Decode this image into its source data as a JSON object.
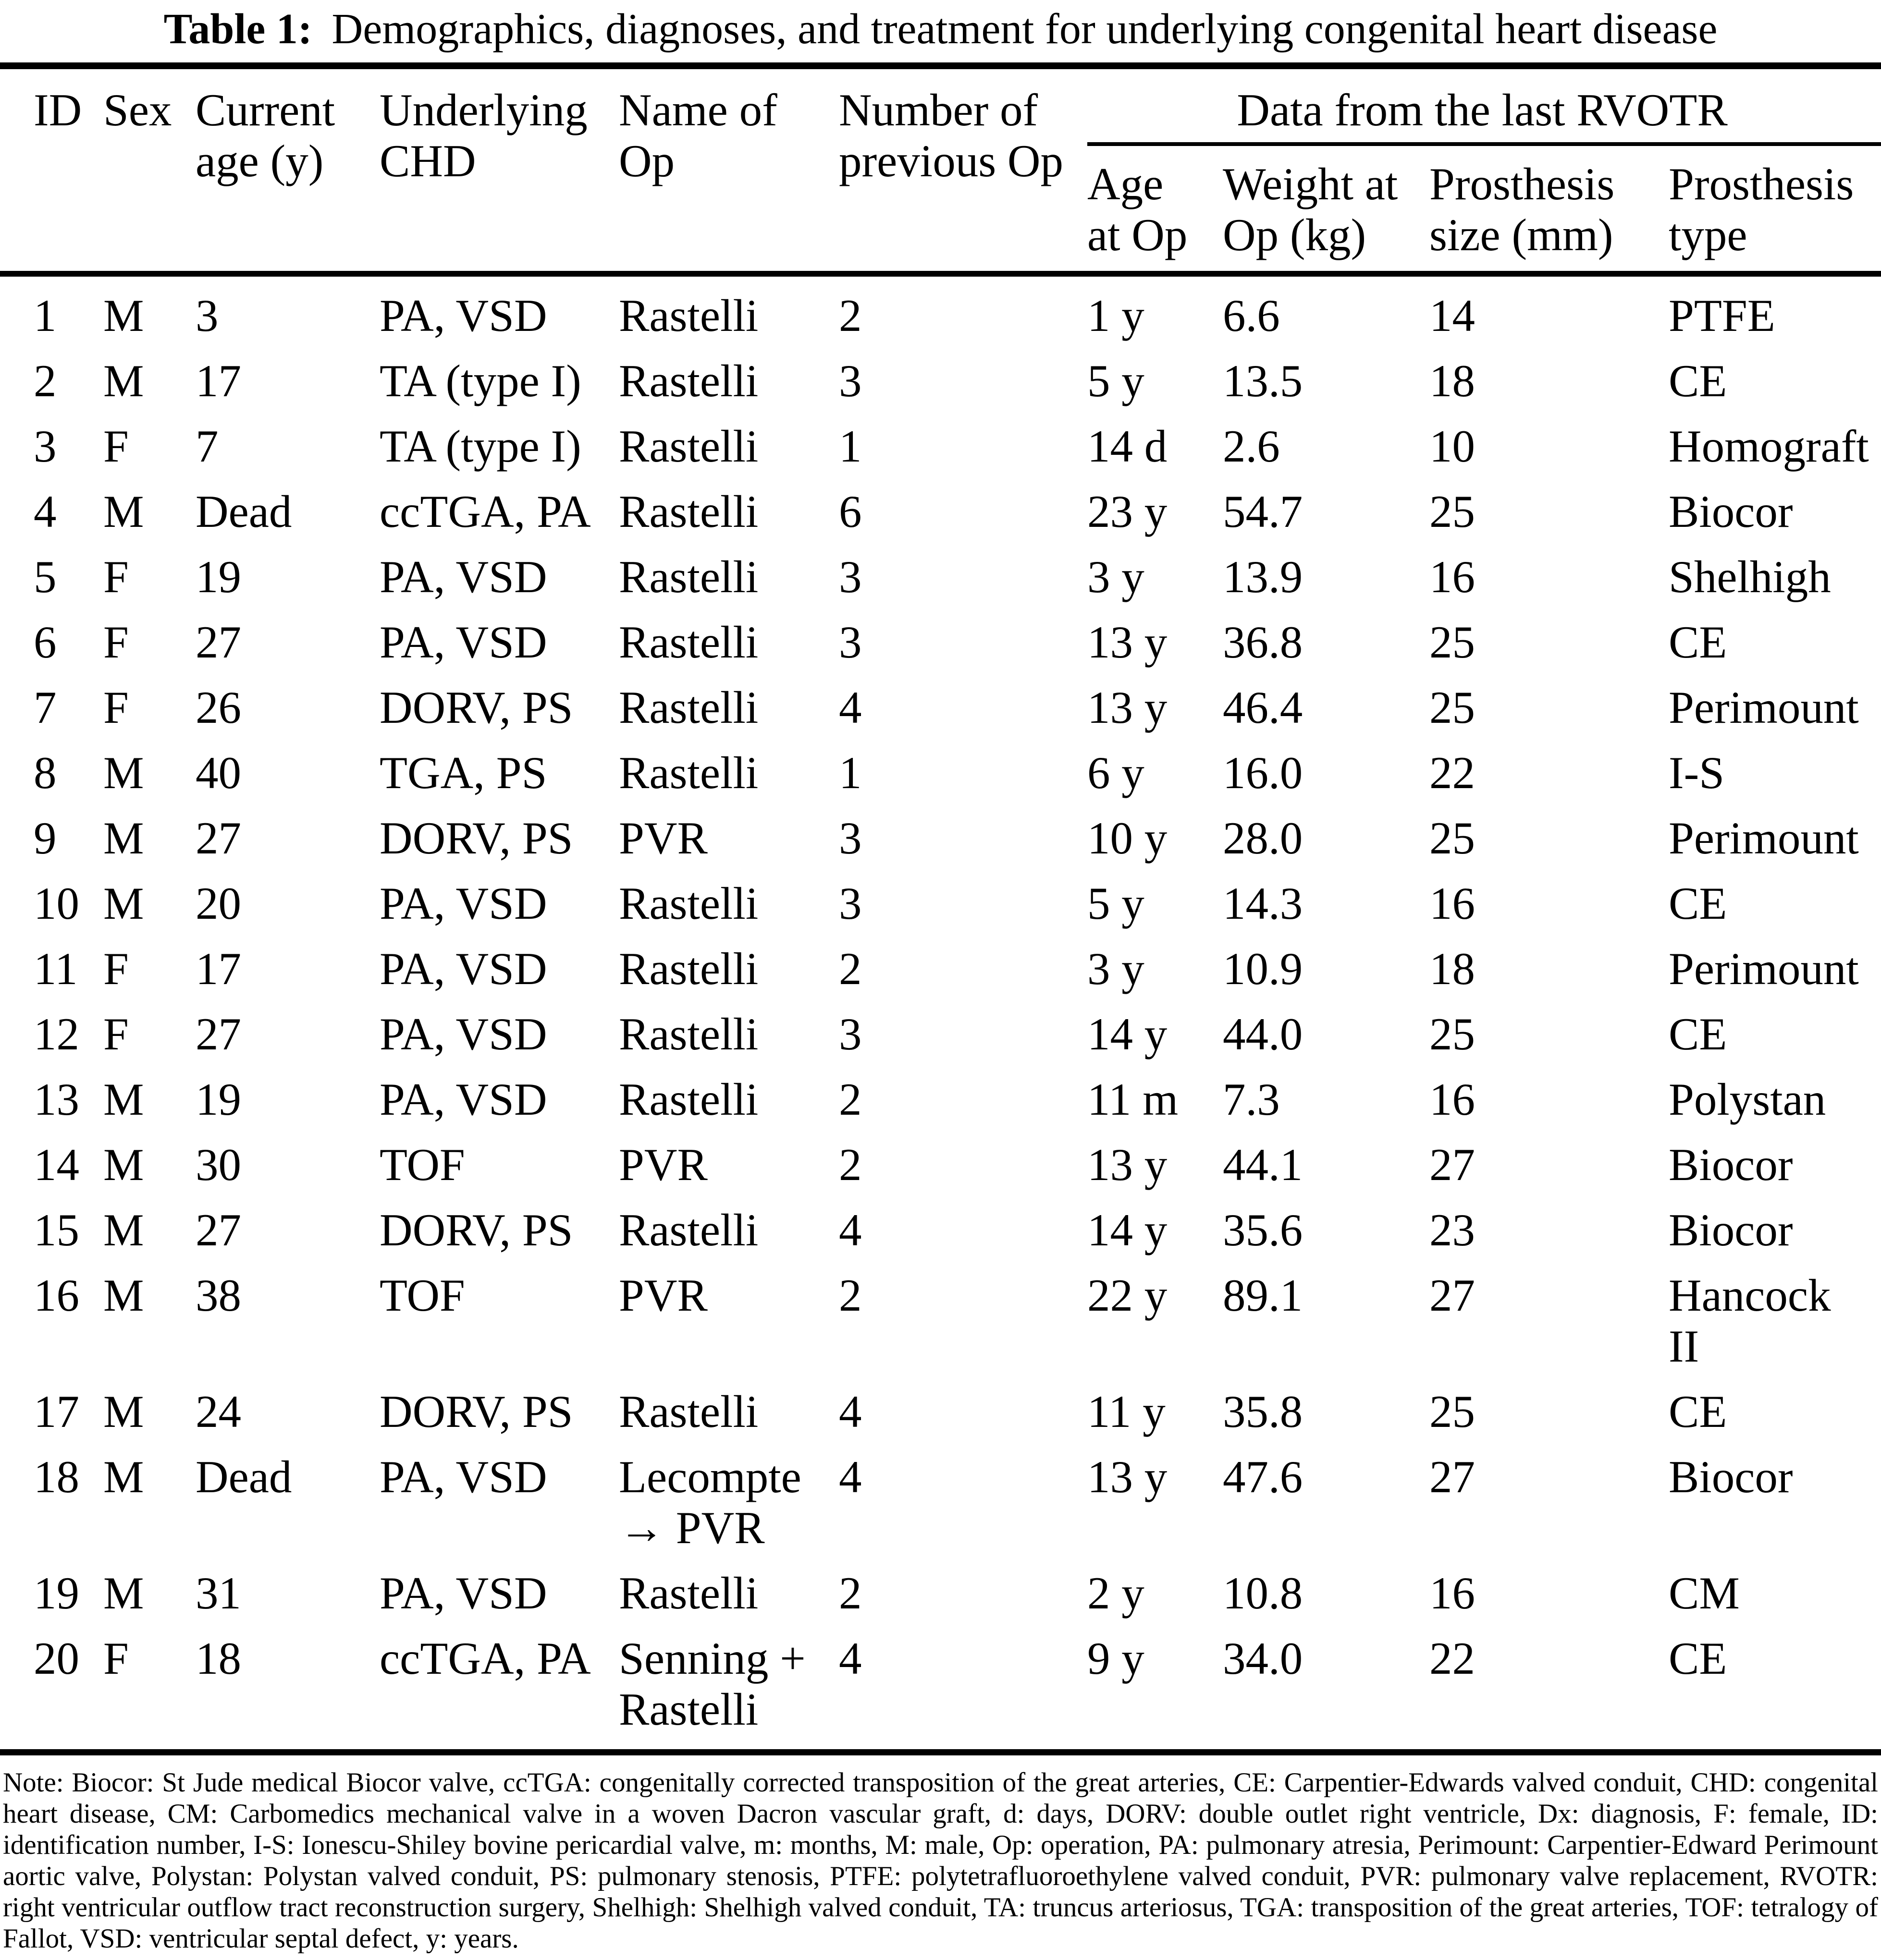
{
  "colors": {
    "text": "#000000",
    "background": "#ffffff",
    "rule": "#000000"
  },
  "title": {
    "label": "Table 1:",
    "rest": "Demographics, diagnoses, and treatment for underlying congenital heart disease"
  },
  "table": {
    "columns": [
      "ID",
      "Sex",
      "Current\nage (y)",
      "Underlying\nCHD",
      "Name of\nOp",
      "Number of\nprevious Op"
    ],
    "group_header": "Data from the last RVOTR",
    "sub_columns": [
      "Age\nat Op",
      "Weight at\nOp (kg)",
      "Prosthesis\nsize (mm)",
      "Prosthesis\ntype"
    ],
    "rows": [
      [
        "1",
        "M",
        "3",
        "PA, VSD",
        "Rastelli",
        "2",
        "1 y",
        "6.6",
        "14",
        "PTFE"
      ],
      [
        "2",
        "M",
        "17",
        "TA (type I)",
        "Rastelli",
        "3",
        "5 y",
        "13.5",
        "18",
        "CE"
      ],
      [
        "3",
        "F",
        "7",
        "TA (type I)",
        "Rastelli",
        "1",
        "14 d",
        "2.6",
        "10",
        "Homograft"
      ],
      [
        "4",
        "M",
        "Dead",
        "ccTGA, PA",
        "Rastelli",
        "6",
        "23 y",
        "54.7",
        "25",
        "Biocor"
      ],
      [
        "5",
        "F",
        "19",
        "PA, VSD",
        "Rastelli",
        "3",
        "3 y",
        "13.9",
        "16",
        "Shelhigh"
      ],
      [
        "6",
        "F",
        "27",
        "PA, VSD",
        "Rastelli",
        "3",
        "13 y",
        "36.8",
        "25",
        "CE"
      ],
      [
        "7",
        "F",
        "26",
        "DORV, PS",
        "Rastelli",
        "4",
        "13 y",
        "46.4",
        "25",
        "Perimount"
      ],
      [
        "8",
        "M",
        "40",
        "TGA, PS",
        "Rastelli",
        "1",
        "6 y",
        "16.0",
        "22",
        "I-S"
      ],
      [
        "9",
        "M",
        "27",
        "DORV, PS",
        "PVR",
        "3",
        "10 y",
        "28.0",
        "25",
        "Perimount"
      ],
      [
        "10",
        "M",
        "20",
        "PA, VSD",
        "Rastelli",
        "3",
        "5 y",
        "14.3",
        "16",
        "CE"
      ],
      [
        "11",
        "F",
        "17",
        "PA, VSD",
        "Rastelli",
        "2",
        "3 y",
        "10.9",
        "18",
        "Perimount"
      ],
      [
        "12",
        "F",
        "27",
        "PA, VSD",
        "Rastelli",
        "3",
        "14 y",
        "44.0",
        "25",
        "CE"
      ],
      [
        "13",
        "M",
        "19",
        "PA, VSD",
        "Rastelli",
        "2",
        "11 m",
        "7.3",
        "16",
        "Polystan"
      ],
      [
        "14",
        "M",
        "30",
        "TOF",
        "PVR",
        "2",
        "13 y",
        "44.1",
        "27",
        "Biocor"
      ],
      [
        "15",
        "M",
        "27",
        "DORV, PS",
        "Rastelli",
        "4",
        "14 y",
        "35.6",
        "23",
        "Biocor"
      ],
      [
        "16",
        "M",
        "38",
        "TOF",
        "PVR",
        "2",
        "22 y",
        "89.1",
        "27",
        "Hancock\nII"
      ],
      [
        "17",
        "M",
        "24",
        "DORV, PS",
        "Rastelli",
        "4",
        "11 y",
        "35.8",
        "25",
        "CE"
      ],
      [
        "18",
        "M",
        "Dead",
        "PA, VSD",
        "Lecompte\n→ PVR",
        "4",
        "13 y",
        "47.6",
        "27",
        "Biocor"
      ],
      [
        "19",
        "M",
        "31",
        "PA, VSD",
        "Rastelli",
        "2",
        "2 y",
        "10.8",
        "16",
        "CM"
      ],
      [
        "20",
        "F",
        "18",
        "ccTGA, PA",
        "Senning +\nRastelli",
        "4",
        "9 y",
        "34.0",
        "22",
        "CE"
      ]
    ]
  },
  "note": {
    "text": "Note: Biocor: St Jude medical Biocor valve, ccTGA: congenitally corrected transposition of the great arteries, CE: Carpentier-Edwards valved conduit, CHD: congenital heart disease, CM: Carbomedics mechanical valve in a woven Dacron vascular graft, d: days, DORV: double outlet right ventricle, Dx: diagnosis, F: female, ID: identification number, I-S: Ionescu-Shiley bovine pericardial valve, m: months, M: male, Op: operation, PA: pulmonary atresia, Perimount: Carpentier-Edward Perimount aortic valve, Polystan: Polystan valved conduit, PS: pulmonary stenosis, PTFE: polytetrafluoroethylene valved conduit, PVR: pulmonary valve replacement, RVOTR: right ventricular outflow tract reconstruction surgery, Shelhigh: Shelhigh valved conduit, TA: truncus arteriosus, TGA: transposition of the great arteries, TOF: tetralogy of Fallot, VSD: ventricular septal defect, y: years."
  }
}
